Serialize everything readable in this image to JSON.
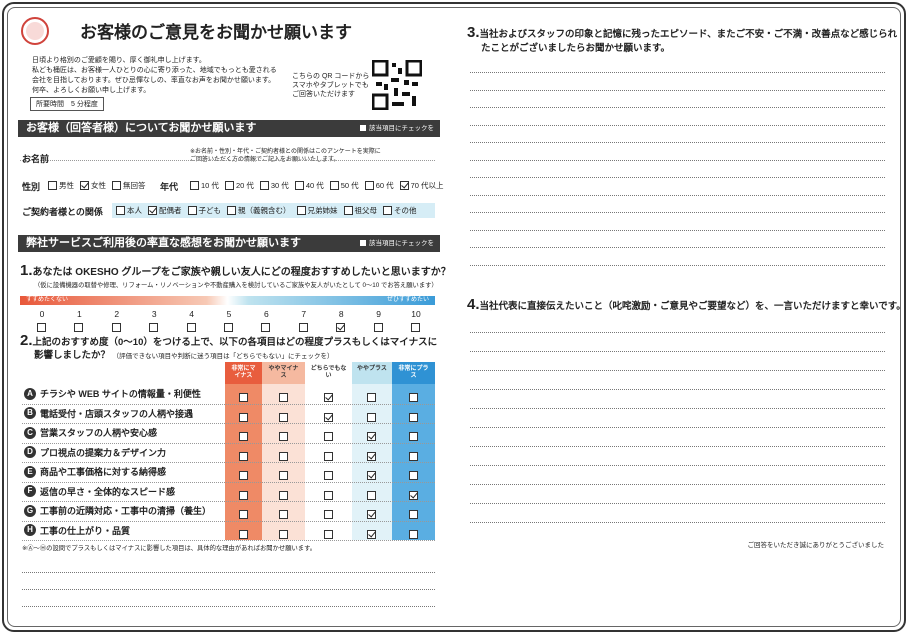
{
  "header": {
    "title": "お客様のご意見をお聞かせ願います",
    "intro": [
      "日頃より格別のご愛顧を賜り、厚く御礼申し上げます。",
      "私ども桶匠は、お客様一人ひとりの心に寄り添った、地域でもっとも愛される",
      "会社を目指しております。ぜひ忌憚なしの、率直なお声をお聞かせ願います。",
      "何卒、よろしくお願い申し上げます。"
    ],
    "time": "所要時間　5 分程度",
    "qr_note": [
      "こちらの QR コードから",
      "スマホやタブレットでも",
      "ご回答いただけます"
    ]
  },
  "respondent": {
    "section": "お客様（回答者様）についてお聞かせ願います",
    "check_hint": "該当項目にチェックを",
    "name_label": "お名前",
    "name_note": [
      "※お名前・性別・年代・ご契約者様との関係はこのアンケートを実際に",
      "ご回答いただく方の情報でご記入をお願いいたします。"
    ],
    "gender": {
      "label": "性別",
      "options": [
        "男性",
        "女性",
        "無回答"
      ],
      "checked": 1
    },
    "age": {
      "label": "年代",
      "options": [
        "10 代",
        "20 代",
        "30 代",
        "40 代",
        "50 代",
        "60 代",
        "70 代以上"
      ],
      "checked": 6
    },
    "relation": {
      "label": "ご契約者様との関係",
      "options": [
        "本人",
        "配偶者",
        "子ども",
        "親（義親含む）",
        "兄弟姉妹",
        "祖父母",
        "その他"
      ],
      "checked": 1
    }
  },
  "feedback": {
    "section": "弊社サービスご利用後の率直な感想をお聞かせ願います",
    "check_hint": "該当項目にチェックを",
    "q1": {
      "number": "1.",
      "text": "あなたは OKESHO グループをご家族や親しい友人にどの程度おすすめしたいと思いますか？",
      "note": "（仮に設備機器の取替や修理、リフォーム・リノベーションや不動産購入を検討しているご家族や友人がいたとして 0〜10 でお答え願います）",
      "low_label": "すすめたくない",
      "high_label": "ぜひすすめたい",
      "scale": [
        0,
        1,
        2,
        3,
        4,
        5,
        6,
        7,
        8,
        9,
        10
      ],
      "checked": 8
    },
    "q2": {
      "number": "2.",
      "text": [
        "上記のおすすめ度（0〜10）をつける上で、以下の各項目はどの程度プラスもしくはマイナスに",
        "影響しましたか？"
      ],
      "note": "（評価できない項目や判断に迷う項目は「どちらでもない」にチェックを）",
      "columns": [
        "非常にマイナス",
        "ややマイナス",
        "どちらでもない",
        "ややプラス",
        "非常にプラス"
      ],
      "rows": [
        {
          "letter": "A",
          "label": "チラシや WEB サイトの情報量・利便性",
          "checked": 2
        },
        {
          "letter": "B",
          "label": "電話受付・店頭スタッフの人柄や接遇",
          "checked": 2
        },
        {
          "letter": "C",
          "label": "営業スタッフの人柄や安心感",
          "checked": 3
        },
        {
          "letter": "D",
          "label": "プロ視点の提案力＆デザイン力",
          "checked": 3
        },
        {
          "letter": "E",
          "label": "商品や工事価格に対する納得感",
          "checked": 3
        },
        {
          "letter": "F",
          "label": "返信の早さ・全体的なスピード感",
          "checked": 4
        },
        {
          "letter": "G",
          "label": "工事前の近隣対応・工事中の清掃（養生）",
          "checked": 3
        },
        {
          "letter": "H",
          "label": "工事の仕上がり・品質",
          "checked": 3
        }
      ],
      "footnote": "※Ⓐ〜Ⓗの設問でプラスもしくはマイナスに影響した項目は、具体的な理由があればお聞かせ願います。"
    }
  },
  "q3": {
    "number": "3.",
    "text": [
      "当社およびスタッフの印象と記憶に残ったエピソード、またご不安・ご不満・改善点など感じられ",
      "たことがございましたらお聞かせ願います。"
    ]
  },
  "q4": {
    "number": "4.",
    "text": "当社代表に直接伝えたいこと（叱咤激励・ご意見やご要望など）を、一言いただけますと幸いです。"
  },
  "thanks": "ご回答をいただき誠にありがとうございました"
}
